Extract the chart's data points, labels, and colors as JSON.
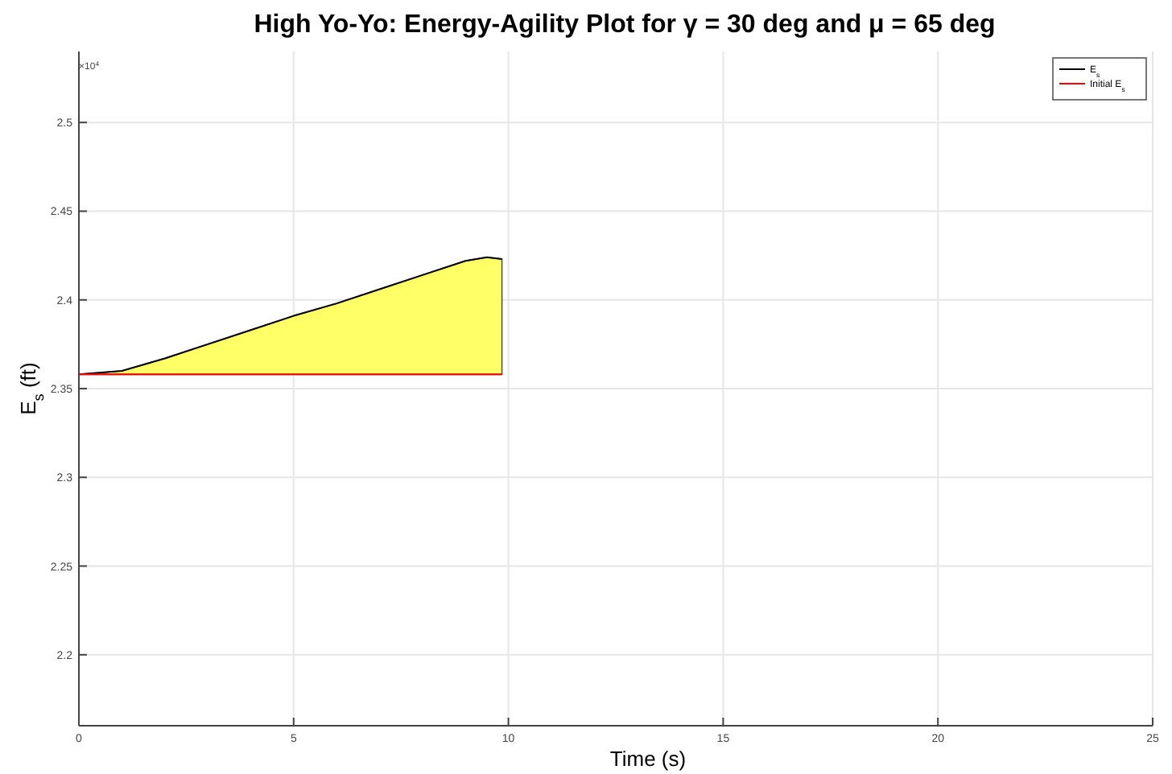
{
  "chart_data": {
    "type": "line",
    "title": "High Yo-Yo: Energy-Agility Plot for γ = 30 deg and μ = 65 deg",
    "xlabel": "Time (s)",
    "ylabel": "E$_{s}$ (ft)",
    "annotations": [
      "×10$^{4}$"
    ],
    "series": [
      {
        "name": "E$_{s}$",
        "color": "#000000",
        "x": [
          0,
          1,
          2,
          3,
          4,
          5,
          6,
          7,
          8,
          9,
          9.5,
          9.85
        ],
        "values": [
          2.358,
          2.36,
          2.367,
          2.375,
          2.383,
          2.391,
          2.398,
          2.406,
          2.414,
          2.422,
          2.424,
          2.423
        ],
        "lower": [
          2.358,
          2.358,
          2.358,
          2.358,
          2.358,
          2.358,
          2.358,
          2.358,
          2.358,
          2.358,
          2.358,
          2.358
        ],
        "upper": [
          2.358,
          2.36,
          2.367,
          2.375,
          2.383,
          2.391,
          2.398,
          2.406,
          2.414,
          2.422,
          2.424,
          2.423
        ]
      },
      {
        "name": "Initial E$_{s}$",
        "color": "#ff0000",
        "x": [
          0,
          9.85
        ],
        "values": [
          2.358,
          2.358
        ]
      }
    ],
    "xlim": [
      0,
      25
    ],
    "xticks": [
      0,
      5,
      10,
      15,
      20,
      25
    ],
    "ylim": [
      2.16,
      2.54
    ],
    "yticks": [
      2.2,
      2.25,
      2.3,
      2.35,
      2.4,
      2.45,
      2.5
    ],
    "grid": true,
    "legend": "top right",
    "marker": "none",
    "line_style": "solid"
  }
}
